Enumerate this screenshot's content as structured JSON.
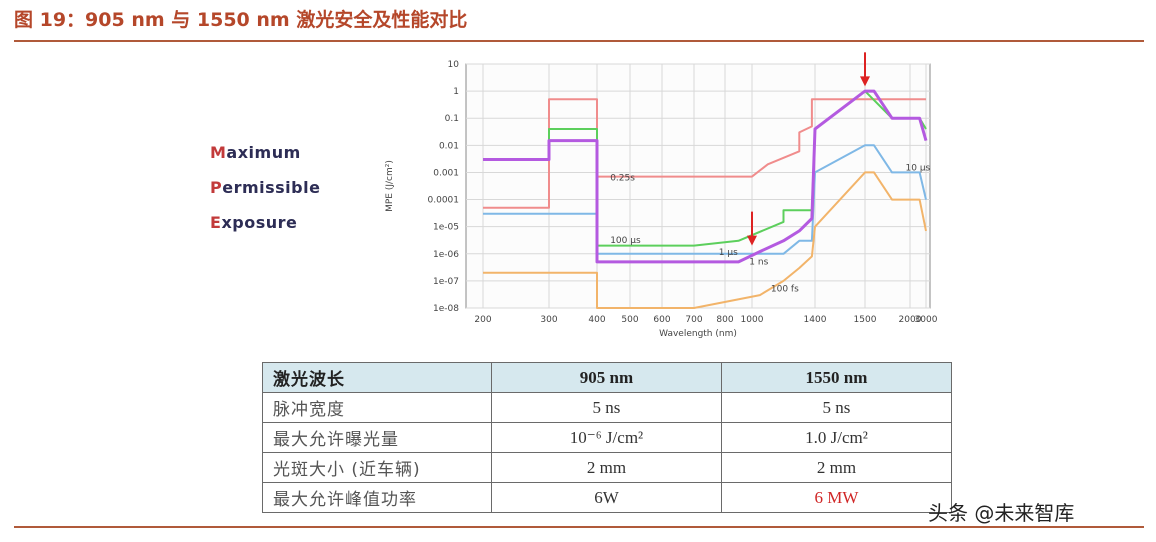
{
  "title": "图 19：905 nm 与 1550 nm 激光安全及性能对比",
  "mpe_words": [
    {
      "initial": "M",
      "rest": "aximum"
    },
    {
      "initial": "P",
      "rest": "ermissible"
    },
    {
      "initial": "E",
      "rest": "xposure"
    }
  ],
  "chart_data": {
    "type": "line",
    "xlabel": "Wavelength (nm)",
    "ylabel": "MPE (J/cm²)",
    "y_log_scale": true,
    "ylim": [
      1e-08,
      10
    ],
    "x_ticks": [
      "200",
      "300",
      "400",
      "500",
      "600",
      "700",
      "800",
      "1000",
      "1400",
      "1500",
      "2000",
      "3000"
    ],
    "y_ticks": [
      "10",
      "1",
      "0.1",
      "0.01",
      "0.001",
      "0.0001",
      "1e-05",
      "1e-06",
      "1e-07",
      "1e-08"
    ],
    "grid": true,
    "series": [
      {
        "name": "0.25s",
        "color": "#f08c8c",
        "x": [
          200,
          300,
          300,
          400,
          400,
          1000,
          1100,
          1300,
          1300,
          1380,
          1380,
          1400,
          1400,
          3000
        ],
        "y": [
          5e-05,
          5e-05,
          0.5,
          0.5,
          0.0007,
          0.0007,
          0.002,
          0.006,
          0.03,
          0.05,
          0.5,
          0.5,
          0.5,
          0.5
        ]
      },
      {
        "name": "10 µs",
        "color": "#7fb8e6",
        "x": [
          200,
          300,
          300,
          400,
          400,
          1200,
          1300,
          1380,
          1400,
          1500,
          1600,
          1800,
          2600,
          3000
        ],
        "y": [
          3e-05,
          3e-05,
          3e-05,
          3e-05,
          1e-06,
          1e-06,
          3e-06,
          3e-06,
          0.001,
          0.01,
          0.01,
          0.001,
          0.001,
          0.0001
        ]
      },
      {
        "name": "100 µs",
        "color": "#5ccf5c",
        "x": [
          200,
          300,
          300,
          400,
          400,
          700,
          900,
          1200,
          1200,
          1380,
          1400,
          1500,
          1800,
          2600,
          3000
        ],
        "y": [
          0.003,
          0.003,
          0.04,
          0.04,
          2e-06,
          2e-06,
          3e-06,
          1.5e-05,
          4e-05,
          4e-05,
          0.04,
          1,
          0.1,
          0.1,
          0.04
        ]
      },
      {
        "name": "1 ns",
        "color": "#b45ae0",
        "x": [
          200,
          300,
          300,
          400,
          400,
          700,
          900,
          1050,
          1200,
          1300,
          1380,
          1400,
          1500,
          1600,
          1800,
          2600,
          3000
        ],
        "y": [
          0.003,
          0.003,
          0.015,
          0.015,
          5e-07,
          5e-07,
          5e-07,
          1.2e-06,
          3e-06,
          7e-06,
          2e-05,
          0.04,
          1,
          1,
          0.1,
          0.1,
          0.015
        ]
      },
      {
        "name": "100 fs",
        "color": "#f2b46a",
        "x": [
          200,
          300,
          400,
          400,
          700,
          1050,
          1200,
          1300,
          1380,
          1400,
          1500,
          1600,
          1800,
          2600,
          3000
        ],
        "y": [
          2e-07,
          2e-07,
          2e-07,
          1e-08,
          1e-08,
          3e-08,
          1e-07,
          3e-07,
          8e-07,
          1e-05,
          0.001,
          0.001,
          0.0001,
          0.0001,
          7e-06
        ]
      }
    ],
    "series_labels": [
      {
        "text": "0.25s",
        "series": "0.25s",
        "x": 440,
        "y": 0.0005
      },
      {
        "text": "100 µs",
        "series": "100 µs",
        "x": 440,
        "y": 2.5e-06
      },
      {
        "text": "1 µs",
        "series": "1 ns",
        "x": 780,
        "y": 9e-07
      },
      {
        "text": "1 ns",
        "series": "1 ns",
        "x": 980,
        "y": 4e-07
      },
      {
        "text": "10 µs",
        "series": "10 µs",
        "x": 1950,
        "y": 0.0012
      },
      {
        "text": "100 fs",
        "series": "100 fs",
        "x": 1120,
        "y": 4e-08
      }
    ],
    "arrows": [
      {
        "x": 1000,
        "y": 2e-06
      },
      {
        "x": 1500,
        "y": 1.5
      }
    ]
  },
  "table": {
    "header": [
      "激光波长",
      "905 nm",
      "1550 nm"
    ],
    "rows": [
      {
        "label": "脉冲宽度",
        "v905": "5 ns",
        "v1550": "5 ns"
      },
      {
        "label": "最大允许曝光量",
        "v905": "10⁻⁶ J/cm²",
        "v1550": "1.0 J/cm²"
      },
      {
        "label": "光斑大小 (近车辆)",
        "v905": "2 mm",
        "v1550": "2 mm"
      },
      {
        "label": "最大允许峰值功率",
        "v905": "6W",
        "v1550": "6 MW"
      }
    ]
  },
  "watermark": "头条 @未来智库"
}
